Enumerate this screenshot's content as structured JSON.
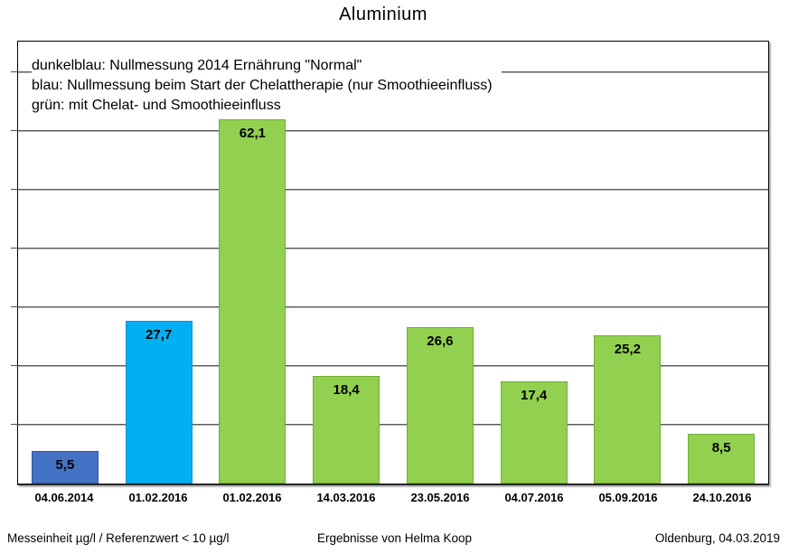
{
  "title": "Aluminium",
  "legend": {
    "lines": [
      "dunkelblau: Nullmessung 2014 Ernährung \"Normal\"",
      "blau: Nullmessung beim Start der Chelattherapie (nur Smoothieeinfluss)",
      "grün: mit Chelat- und Smoothieeinfluss"
    ]
  },
  "footer": {
    "left": "Messeinheit µg/l / Referenzwert < 10 µg/l",
    "center": "Ergebnisse von Helma Koop",
    "right": "Oldenburg, 04.03.2019"
  },
  "colors": {
    "dunkelblau": {
      "fill": "#4472C4",
      "border": "#35589E"
    },
    "blau": {
      "fill": "#00B0F0",
      "border": "#0093C9"
    },
    "gruen": {
      "fill": "#92D050",
      "border": "#74AC3C"
    },
    "gridline": "#595959",
    "axis": "#262626"
  },
  "chart_data": {
    "type": "bar",
    "title": "Aluminium",
    "categories": [
      "04.06.2014",
      "01.02.2016",
      "01.02.2016",
      "14.03.2016",
      "23.05.2016",
      "04.07.2016",
      "05.09.2016",
      "24.10.2016"
    ],
    "values": [
      5.5,
      27.7,
      62.1,
      18.4,
      26.6,
      17.4,
      25.2,
      8.5
    ],
    "value_labels": [
      "5,5",
      "27,7",
      "62,1",
      "18,4",
      "26,6",
      "17,4",
      "25,2",
      "8,5"
    ],
    "bar_color_keys": [
      "dunkelblau",
      "blau",
      "gruen",
      "gruen",
      "gruen",
      "gruen",
      "gruen",
      "gruen"
    ],
    "xlabel": "",
    "ylabel": "",
    "ylim": [
      0,
      75.3
    ],
    "gridline_step": 10,
    "grid": true,
    "y_axis_labels_visible": false,
    "legend_position": "top-left-inside",
    "unit_note": "Messeinheit µg/l / Referenzwert < 10 µg/l"
  }
}
